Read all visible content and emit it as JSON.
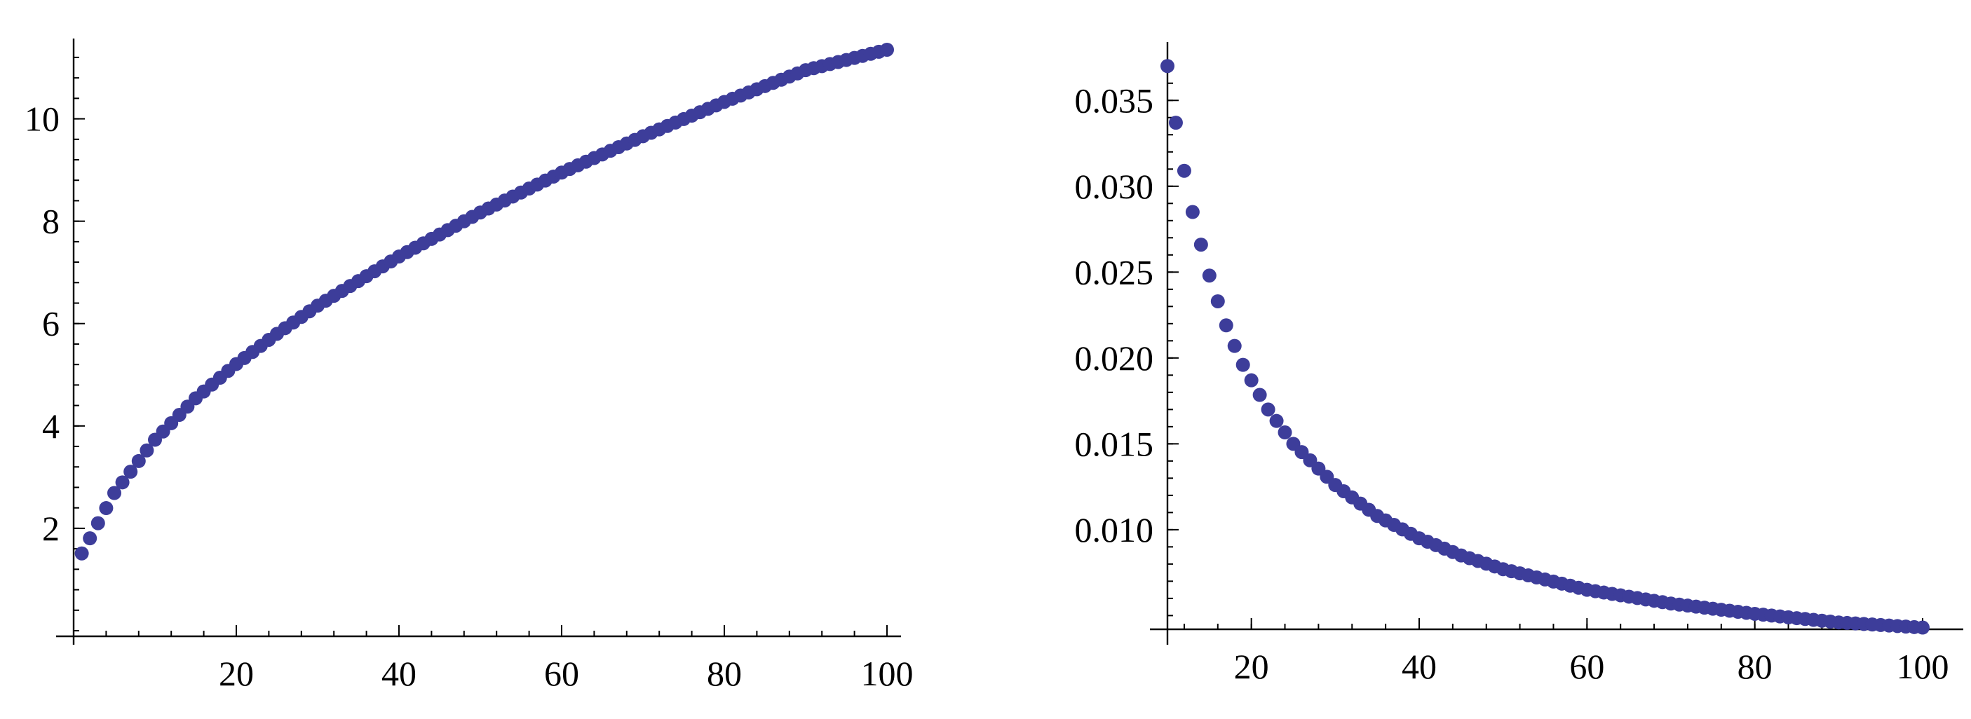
{
  "colors": {
    "points": "#3d3d9a",
    "axes": "#000000",
    "background": "#ffffff"
  },
  "chart_data": [
    {
      "type": "scatter",
      "title": "",
      "xlabel": "",
      "ylabel": "",
      "xlim": [
        0,
        100
      ],
      "ylim": [
        0,
        11.5
      ],
      "grid": false,
      "x_ticks": [
        20,
        40,
        60,
        80,
        100
      ],
      "x_tick_labels": [
        "20",
        "40",
        "60",
        "80",
        "100"
      ],
      "y_ticks": [
        2,
        4,
        6,
        8,
        10
      ],
      "y_tick_labels": [
        "2",
        "4",
        "6",
        "8",
        "10"
      ],
      "series": [
        {
          "x": [
            1,
            5,
            10,
            15,
            20,
            25,
            30,
            40,
            50,
            60,
            70,
            80,
            90,
            100
          ],
          "y": [
            1.51,
            2.69,
            3.73,
            4.54,
            5.21,
            5.8,
            6.35,
            7.31,
            8.17,
            8.95,
            9.66,
            10.33,
            10.95,
            11.35
          ]
        }
      ]
    },
    {
      "type": "scatter",
      "title": "",
      "xlabel": "",
      "ylabel": "",
      "xlim": [
        10,
        100
      ],
      "ylim": [
        0.0042,
        0.0375
      ],
      "grid": false,
      "x_ticks": [
        20,
        40,
        60,
        80,
        100
      ],
      "x_tick_labels": [
        "20",
        "40",
        "60",
        "80",
        "100"
      ],
      "y_ticks": [
        0.01,
        0.015,
        0.02,
        0.025,
        0.03,
        0.035
      ],
      "y_tick_labels": [
        "0.010",
        "0.015",
        "0.020",
        "0.025",
        "0.030",
        "0.035"
      ],
      "series": [
        {
          "x": [
            10,
            11,
            12,
            13,
            14,
            15,
            16,
            17,
            18,
            19,
            20,
            22,
            25,
            30,
            35,
            40,
            45,
            50,
            60,
            70,
            80,
            90,
            100
          ],
          "y": [
            0.037,
            0.0337,
            0.0309,
            0.0285,
            0.0266,
            0.0248,
            0.0233,
            0.0219,
            0.0207,
            0.0196,
            0.0187,
            0.017,
            0.015,
            0.0126,
            0.0108,
            0.0095,
            0.0085,
            0.0077,
            0.0065,
            0.0057,
            0.0051,
            0.0046,
            0.0043
          ]
        }
      ]
    }
  ]
}
